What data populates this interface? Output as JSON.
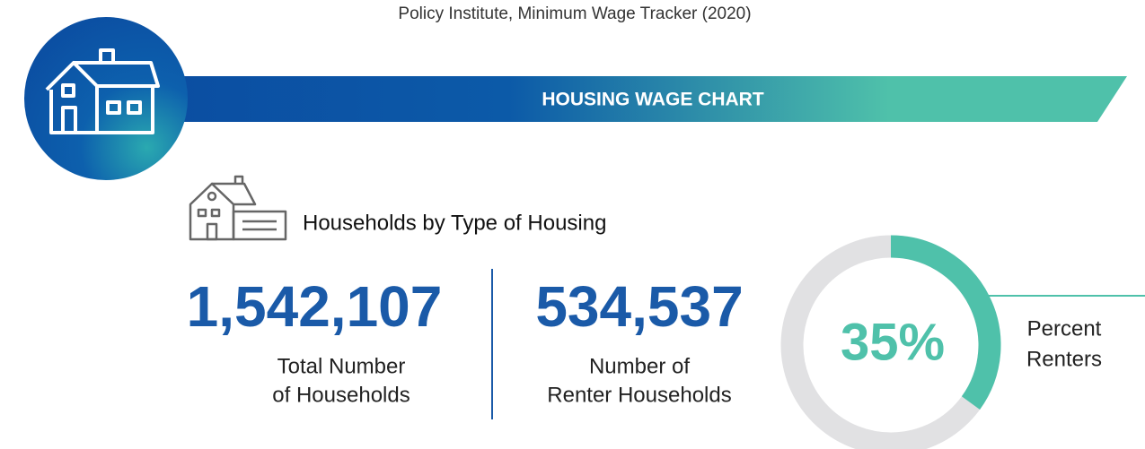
{
  "source": "Policy Institute, Minimum Wage Tracker (2020)",
  "banner": {
    "title": "HOUSING WAGE CHART"
  },
  "section": {
    "title": "Households by Type of Housing"
  },
  "stats": [
    {
      "value": "1,542,107",
      "label": [
        "Total Number",
        "of Households"
      ]
    },
    {
      "value": "534,537",
      "label": [
        "Number of",
        "Renter Households"
      ]
    }
  ],
  "donut": {
    "value": 35,
    "label": "35%",
    "caption": [
      "Percent",
      "Renters"
    ],
    "color": "#4fc1aa",
    "track_color": "#e1e1e3"
  }
}
